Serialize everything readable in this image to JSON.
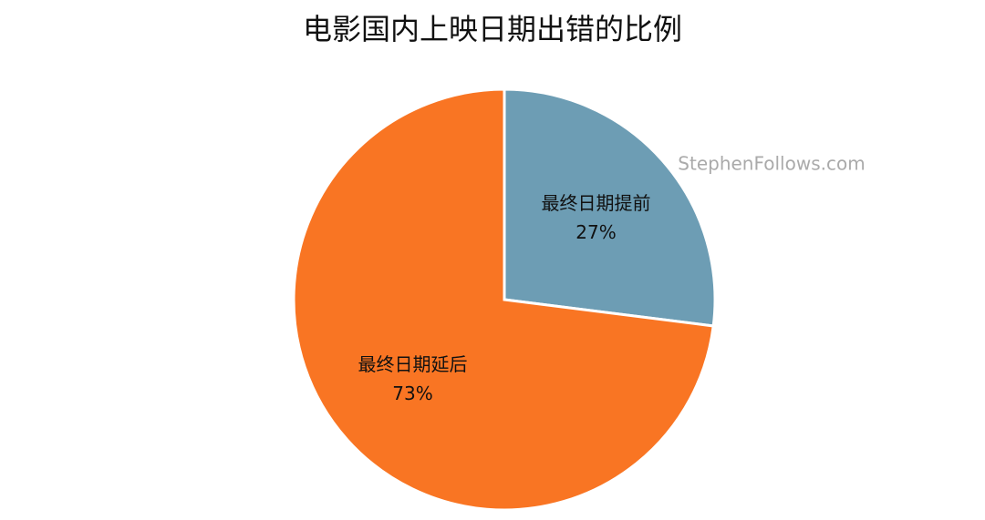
{
  "chart_data": {
    "type": "pie",
    "title": "电影国内上映日期出错的比例",
    "categories": [
      "最终日期提前",
      "最终日期延后"
    ],
    "values": [
      27,
      73
    ],
    "value_labels": [
      "27%",
      "73%"
    ],
    "colors": [
      "#6d9db4",
      "#f97523"
    ],
    "annotation": "StephenFollows.com"
  }
}
